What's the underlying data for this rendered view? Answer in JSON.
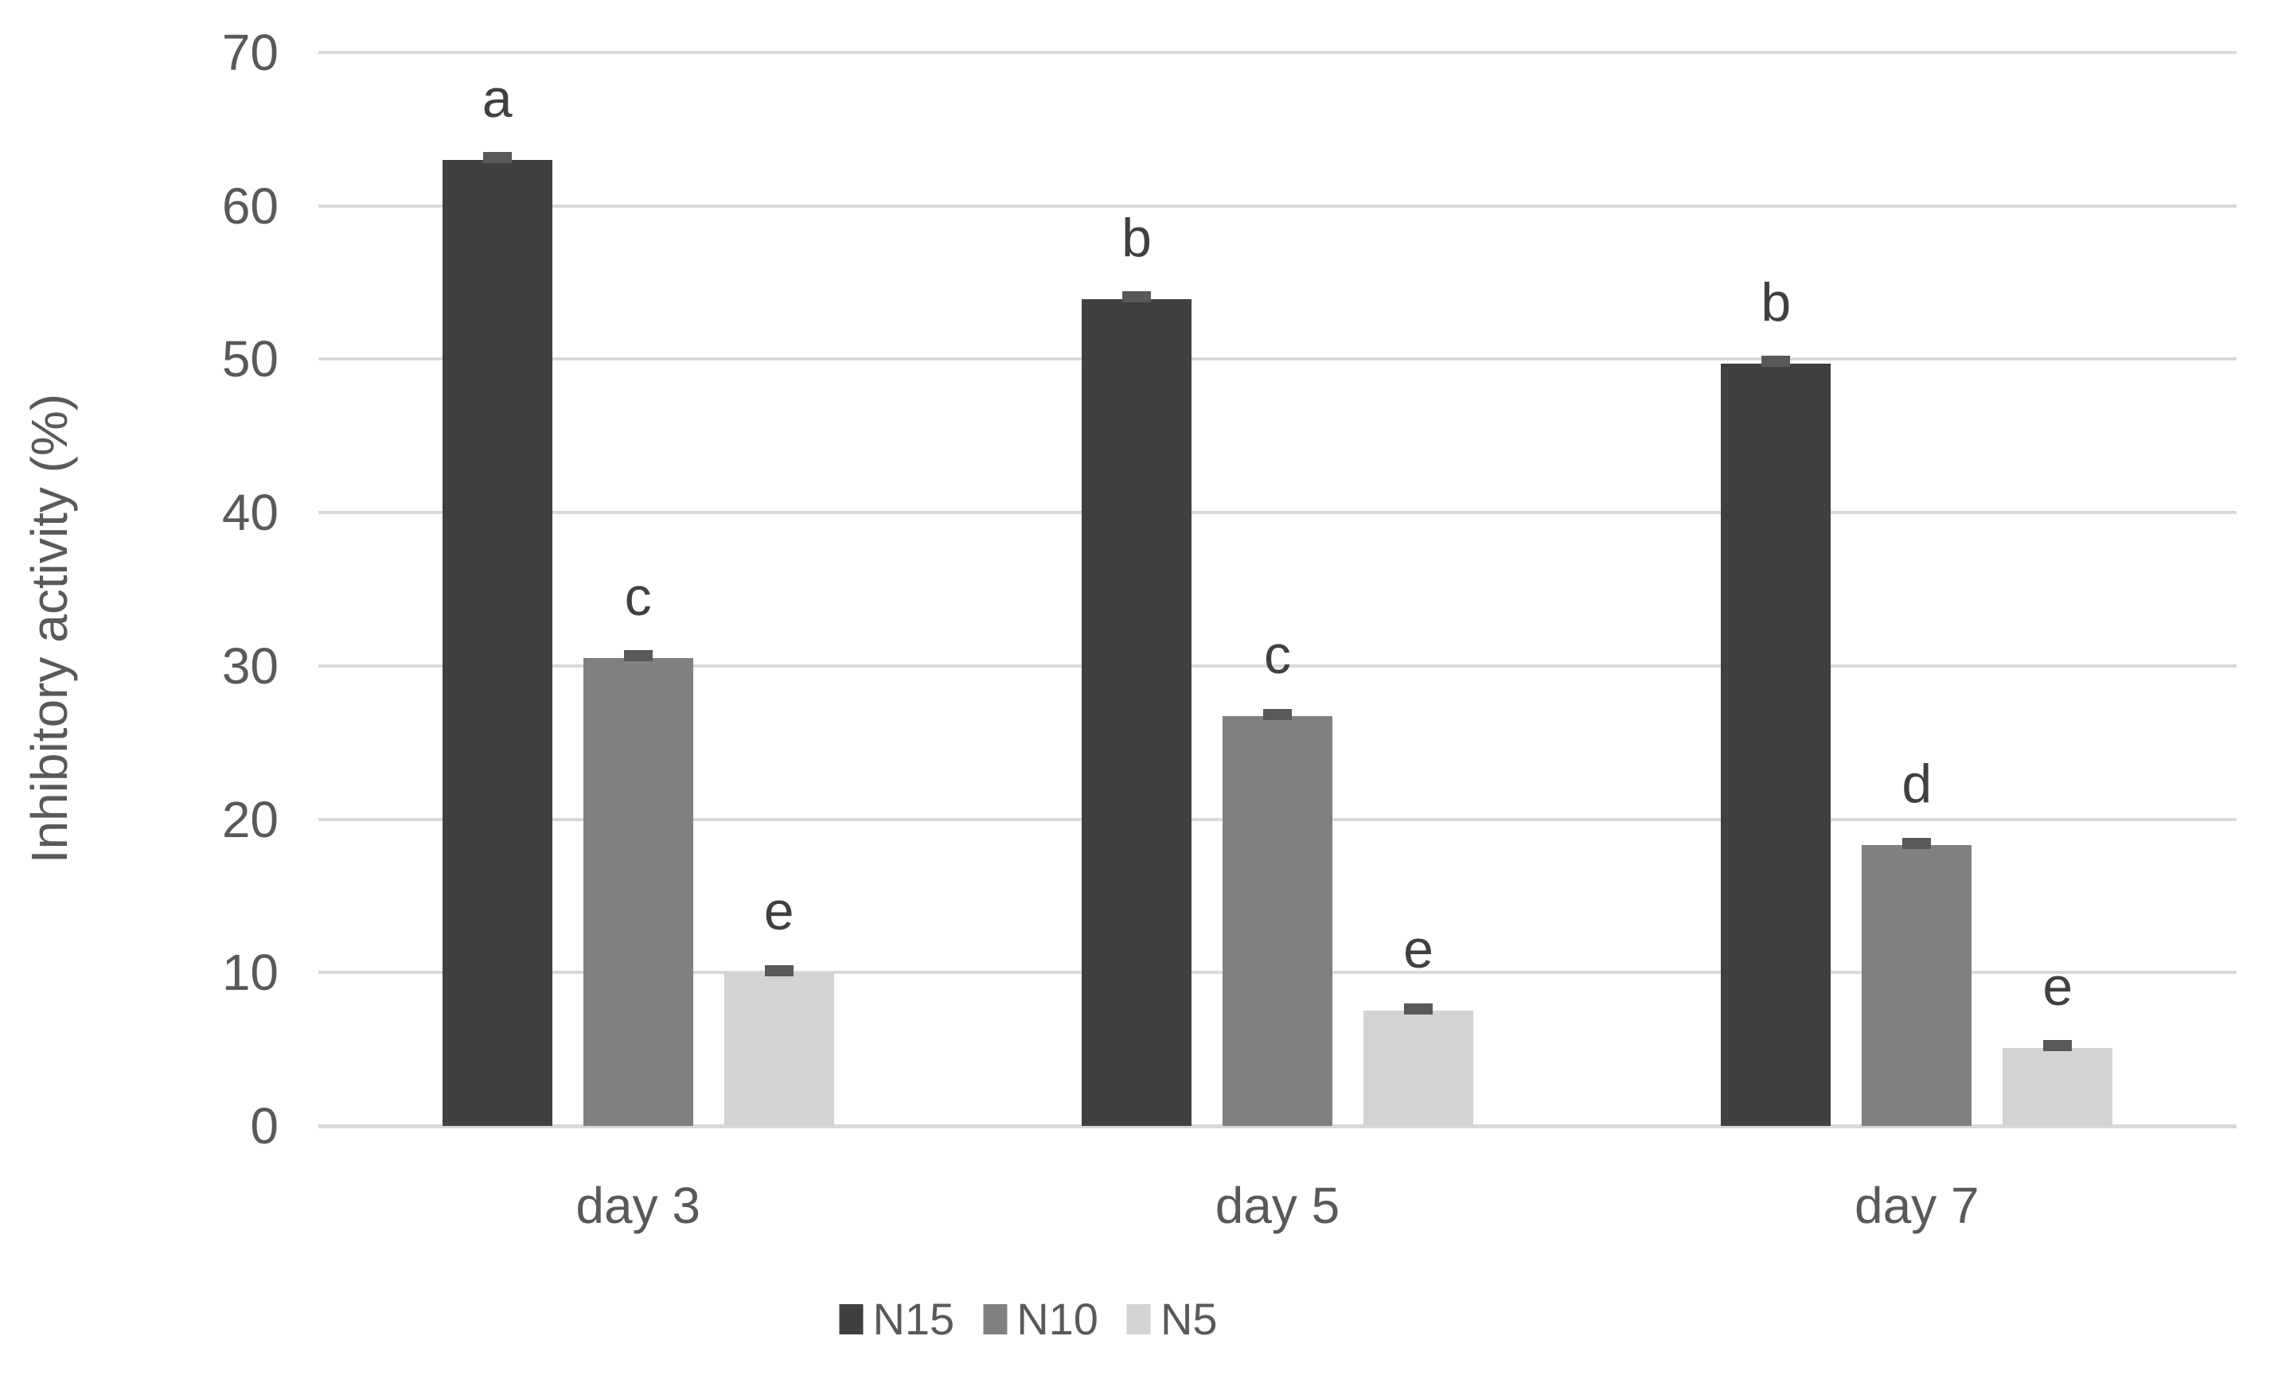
{
  "chart_data": {
    "type": "bar",
    "title": "",
    "xlabel": "",
    "ylabel": "Inhibitory activity (%)",
    "categories": [
      "day 3",
      "day 5",
      "day 7"
    ],
    "series": [
      {
        "name": "N15",
        "color": "#404040",
        "values": [
          63.0,
          53.9,
          49.7
        ],
        "sig_letters": [
          "a",
          "b",
          "b"
        ],
        "error": 0.3
      },
      {
        "name": "N10",
        "color": "#808080",
        "values": [
          30.5,
          26.7,
          18.3
        ],
        "sig_letters": [
          "c",
          "c",
          "d"
        ],
        "error": 0.3
      },
      {
        "name": "N5",
        "color": "#d3d3d3",
        "values": [
          10.0,
          7.5,
          5.1
        ],
        "sig_letters": [
          "e",
          "e",
          "e"
        ],
        "error": 0.3
      }
    ],
    "ylim": [
      0,
      70
    ],
    "yticks": [
      70,
      60,
      50,
      40,
      30,
      20,
      10,
      0
    ],
    "grid": true,
    "legend_position": "bottom",
    "colors": {
      "gridline": "#d9d9d9",
      "axis_line": "#d9d9d9",
      "axis_text": "#595959",
      "sig_letter": "#404040",
      "error_bar": "#595959",
      "background": "#ffffff"
    }
  }
}
